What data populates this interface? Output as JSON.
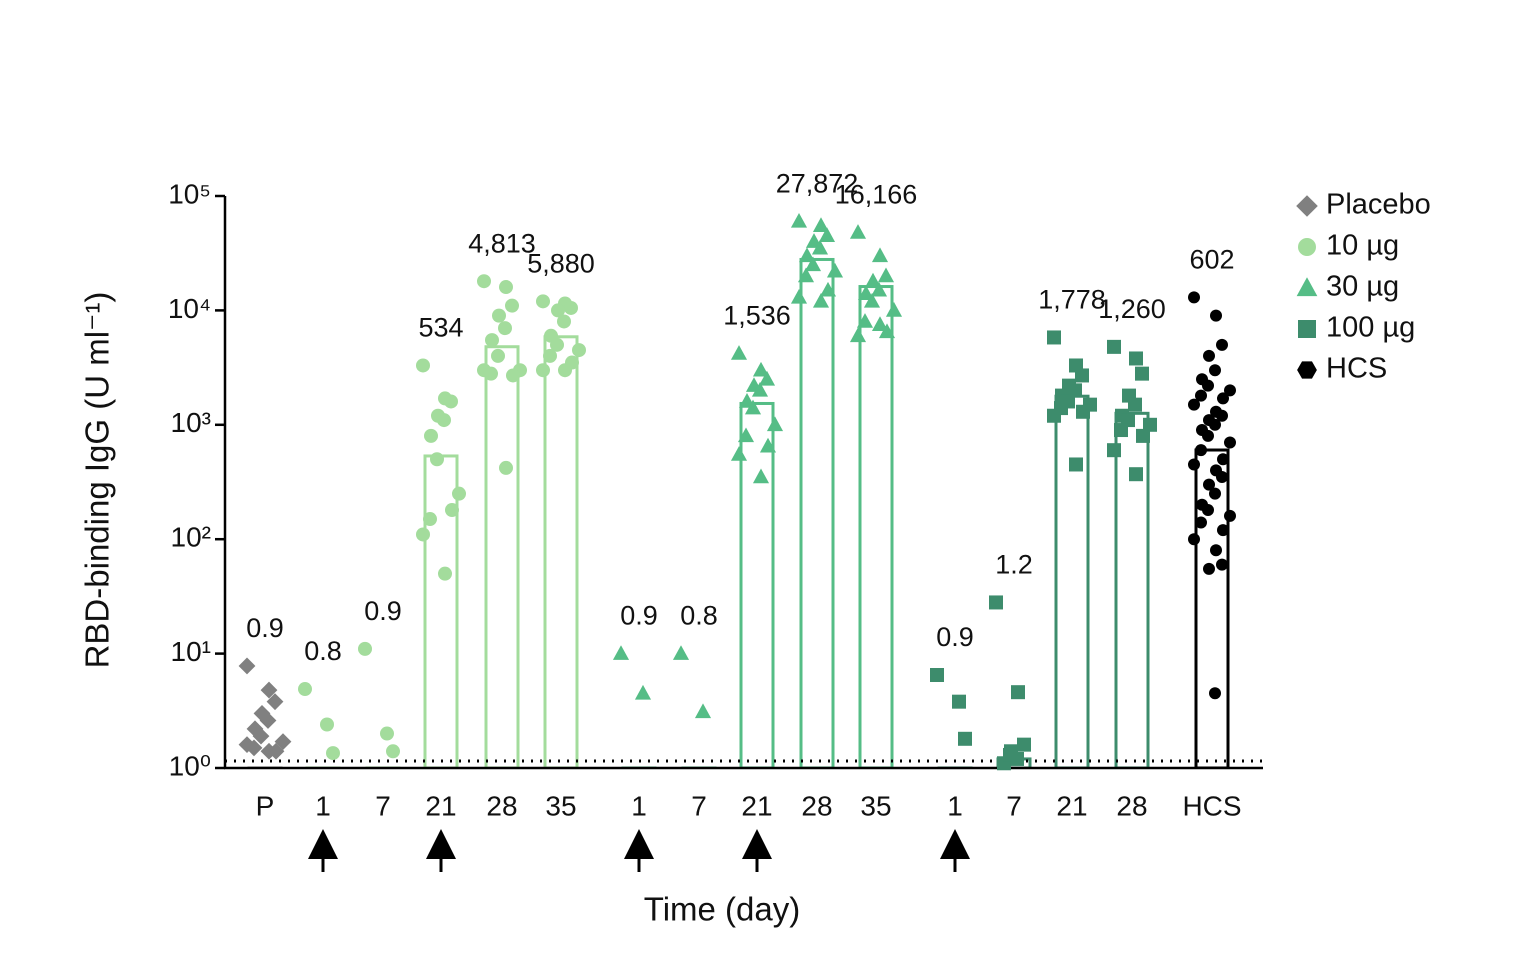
{
  "chart_data": {
    "type": "bar",
    "log_scale_y": true,
    "y_label": "RBD-binding IgG (U ml⁻¹)",
    "x_label": "Time (day)",
    "categories": [
      "P",
      "1",
      "7",
      "21",
      "28",
      "35",
      "1",
      "7",
      "21",
      "28",
      "35",
      "1",
      "7",
      "21",
      "28",
      "HCS"
    ],
    "category_series": [
      0,
      1,
      1,
      1,
      1,
      1,
      2,
      2,
      2,
      2,
      2,
      3,
      3,
      3,
      3,
      4
    ],
    "values": [
      0.9,
      0.8,
      0.9,
      534,
      4813,
      5880,
      0.9,
      0.8,
      1536,
      27872,
      16166,
      0.9,
      1.2,
      1778,
      1260,
      602
    ],
    "value_labels": [
      "0.9",
      "0.8",
      "0.9",
      "534",
      "4,813",
      "5,880",
      "0.9",
      "0.8",
      "1,536",
      "27,872",
      "16,166",
      "0.9",
      "1.2",
      "1,778",
      "1,260",
      "602"
    ],
    "points": [
      [
        7.8,
        4.8,
        3.8,
        3.0,
        2.6,
        2.2,
        1.9,
        1.7,
        1.5,
        1.4,
        1.6,
        1.4
      ],
      [
        4.9,
        2.4,
        1.35
      ],
      [
        11,
        2.0,
        1.4
      ],
      [
        3300,
        1700,
        1600,
        1200,
        1100,
        800,
        500,
        250,
        150,
        180,
        110,
        50
      ],
      [
        18000,
        16000,
        11000,
        9000,
        7000,
        5500,
        4000,
        3000,
        2800,
        2700,
        3000,
        420
      ],
      [
        12000,
        11500,
        10500,
        10000,
        8000,
        6000,
        5000,
        4500,
        4000,
        3500,
        3000,
        3000
      ],
      [
        10,
        4.5
      ],
      [
        10,
        3.1
      ],
      [
        4200,
        3000,
        2500,
        2200,
        2000,
        1600,
        1400,
        1000,
        800,
        650,
        550,
        350
      ],
      [
        60000,
        55000,
        45000,
        40000,
        35000,
        30000,
        25000,
        22000,
        20000,
        15000,
        13000,
        12000
      ],
      [
        48000,
        30000,
        20000,
        18000,
        15000,
        14000,
        12000,
        10000,
        8000,
        6500,
        6000,
        7500
      ],
      [
        6.5,
        3.8,
        1.8
      ],
      [
        28,
        4.6,
        1.6,
        1.4,
        1.2,
        1.1,
        1.3
      ],
      [
        5800,
        3300,
        2700,
        2200,
        2000,
        1800,
        1600,
        1500,
        1400,
        1300,
        1200,
        450
      ],
      [
        4800,
        3800,
        2800,
        1800,
        1500,
        1200,
        1100,
        1000,
        900,
        800,
        600,
        370
      ],
      [
        13000,
        9000,
        5000,
        4000,
        3000,
        2500,
        2200,
        2000,
        1800,
        1700,
        1500,
        1300,
        1200,
        1100,
        1000,
        900,
        800,
        700,
        600,
        500,
        450,
        400,
        350,
        300,
        250,
        200,
        180,
        160,
        140,
        120,
        100,
        80,
        60,
        55,
        4.5
      ]
    ],
    "legend": [
      {
        "name": "Placebo",
        "color": "#808080",
        "marker": "diamond"
      },
      {
        "name": "10 µg",
        "color": "#a3dc9c",
        "marker": "circle"
      },
      {
        "name": "30 µg",
        "color": "#55bd86",
        "marker": "triangle"
      },
      {
        "name": "100 µg",
        "color": "#3d8c6c",
        "marker": "square"
      },
      {
        "name": "HCS",
        "color": "#000000",
        "marker": "hexagon"
      }
    ],
    "detection_limit": 1.15,
    "ylim": [
      1,
      100000
    ],
    "yticks": [
      {
        "value": 1,
        "label": "10⁰"
      },
      {
        "value": 10,
        "label": "10¹"
      },
      {
        "value": 100,
        "label": "10²"
      },
      {
        "value": 1000,
        "label": "10³"
      },
      {
        "value": 10000,
        "label": "10⁴"
      },
      {
        "value": 100000,
        "label": "10⁵"
      }
    ]
  }
}
